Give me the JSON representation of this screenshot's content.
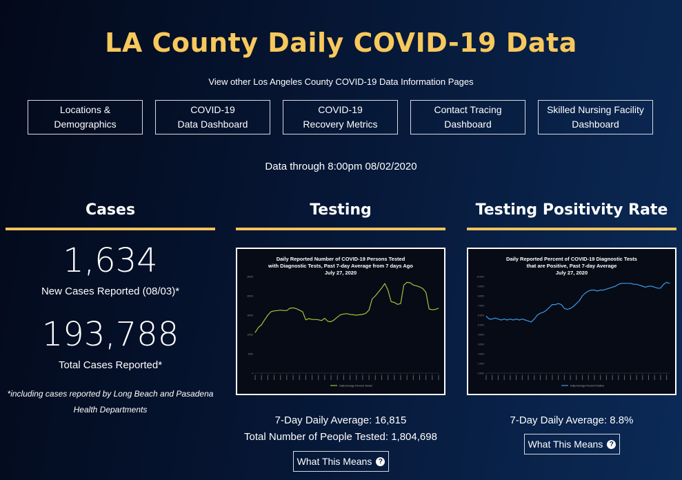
{
  "header": {
    "title": "LA County Daily COVID-19 Data",
    "subtitle": "View other Los Angeles County COVID-19 Data Information Pages"
  },
  "nav_buttons": [
    {
      "label": "Locations &\nDemographics"
    },
    {
      "label": "COVID-19\nData Dashboard"
    },
    {
      "label": "COVID-19\nRecovery Metrics"
    },
    {
      "label": "Contact Tracing\nDashboard"
    },
    {
      "label": "Skilled Nursing Facility\nDashboard"
    }
  ],
  "data_through": "Data through 8:00pm 08/02/2020",
  "cases": {
    "heading": "Cases",
    "new_cases": "1,634",
    "new_cases_label": "New Cases Reported (08/03)*",
    "total_cases": "193,788",
    "total_cases_label": "Total Cases Reported*",
    "footnote": "*including cases reported by Long Beach and Pasadena Health Departments"
  },
  "testing": {
    "heading": "Testing",
    "chart_title": "Daily Reported Number of COVID-19 Persons Tested\nwith Diagnostic Tests, Past 7-day Average from 7 days Ago\nJuly 27, 2020",
    "daily_average": "7-Day Daily Average: 16,815",
    "total_tested": "Total Number of People Tested: 1,804,698",
    "button_label": "What This Means"
  },
  "positivity": {
    "heading": "Testing Positivity Rate",
    "chart_title": "Daily Reported Percent of COVID-19 Diagnostic Tests\nthat are Positive, Past 7-day Average\nJuly 27, 2020",
    "daily_average": "7-Day Daily Average: 8.8%",
    "button_label": "What This Means"
  },
  "colors": {
    "accent": "#f7c85c",
    "testing_line": "#a6c43a",
    "positivity_line": "#3d9be9"
  },
  "chart_data": [
    {
      "type": "line",
      "title": "Daily Reported Number of COVID-19 Persons Tested with Diagnostic Tests, Past 7-day Average from 7 days Ago",
      "subtitle": "July 27, 2020",
      "ylim": [
        0,
        25000
      ],
      "yticks": [
        0,
        5000,
        10000,
        15000,
        20000,
        25000
      ],
      "series": [
        {
          "name": "Daily Average Persons Tested",
          "values": [
            10500,
            11800,
            12500,
            13800,
            15000,
            15900,
            16100,
            16200,
            16300,
            16200,
            16200,
            16800,
            16900,
            16700,
            16300,
            15900,
            13800,
            14100,
            13900,
            13900,
            13800,
            13600,
            14200,
            13400,
            13300,
            13800,
            14500,
            15100,
            15300,
            15400,
            15200,
            15100,
            15000,
            15100,
            15200,
            15500,
            16300,
            19200,
            20000,
            21000,
            22000,
            23200,
            21500,
            18500,
            18300,
            17800,
            18000,
            22800,
            23500,
            23400,
            22800,
            22600,
            22300,
            21900,
            20900,
            16600,
            16400,
            16500,
            16800
          ]
        }
      ]
    },
    {
      "type": "line",
      "title": "Daily Reported Percent of COVID-19 Diagnostic Tests that are Positive, Past 7-day Average",
      "subtitle": "July 27, 2020",
      "ylim": [
        0,
        10
      ],
      "yticks": [
        0,
        1,
        2,
        3,
        4,
        5,
        6,
        7,
        8,
        9,
        10
      ],
      "series": [
        {
          "name": "Daily Average Percent Positive",
          "values": [
            5.9,
            5.6,
            5.6,
            5.7,
            5.6,
            5.5,
            5.6,
            5.5,
            5.6,
            5.5,
            5.6,
            5.5,
            5.6,
            5.5,
            5.4,
            5.3,
            5.6,
            6.0,
            6.2,
            6.3,
            6.5,
            6.8,
            7.1,
            7.1,
            7.2,
            7.1,
            6.7,
            6.6,
            6.7,
            6.9,
            7.2,
            7.5,
            8.0,
            8.3,
            8.5,
            8.6,
            8.6,
            8.5,
            8.6,
            8.6,
            8.7,
            8.8,
            8.9,
            9.0,
            9.2,
            9.3,
            9.3,
            9.3,
            9.3,
            9.2,
            9.2,
            9.1,
            9.0,
            8.9,
            9.0,
            9.0,
            8.9,
            8.8,
            8.8,
            9.2,
            9.4,
            9.3
          ]
        }
      ]
    }
  ]
}
